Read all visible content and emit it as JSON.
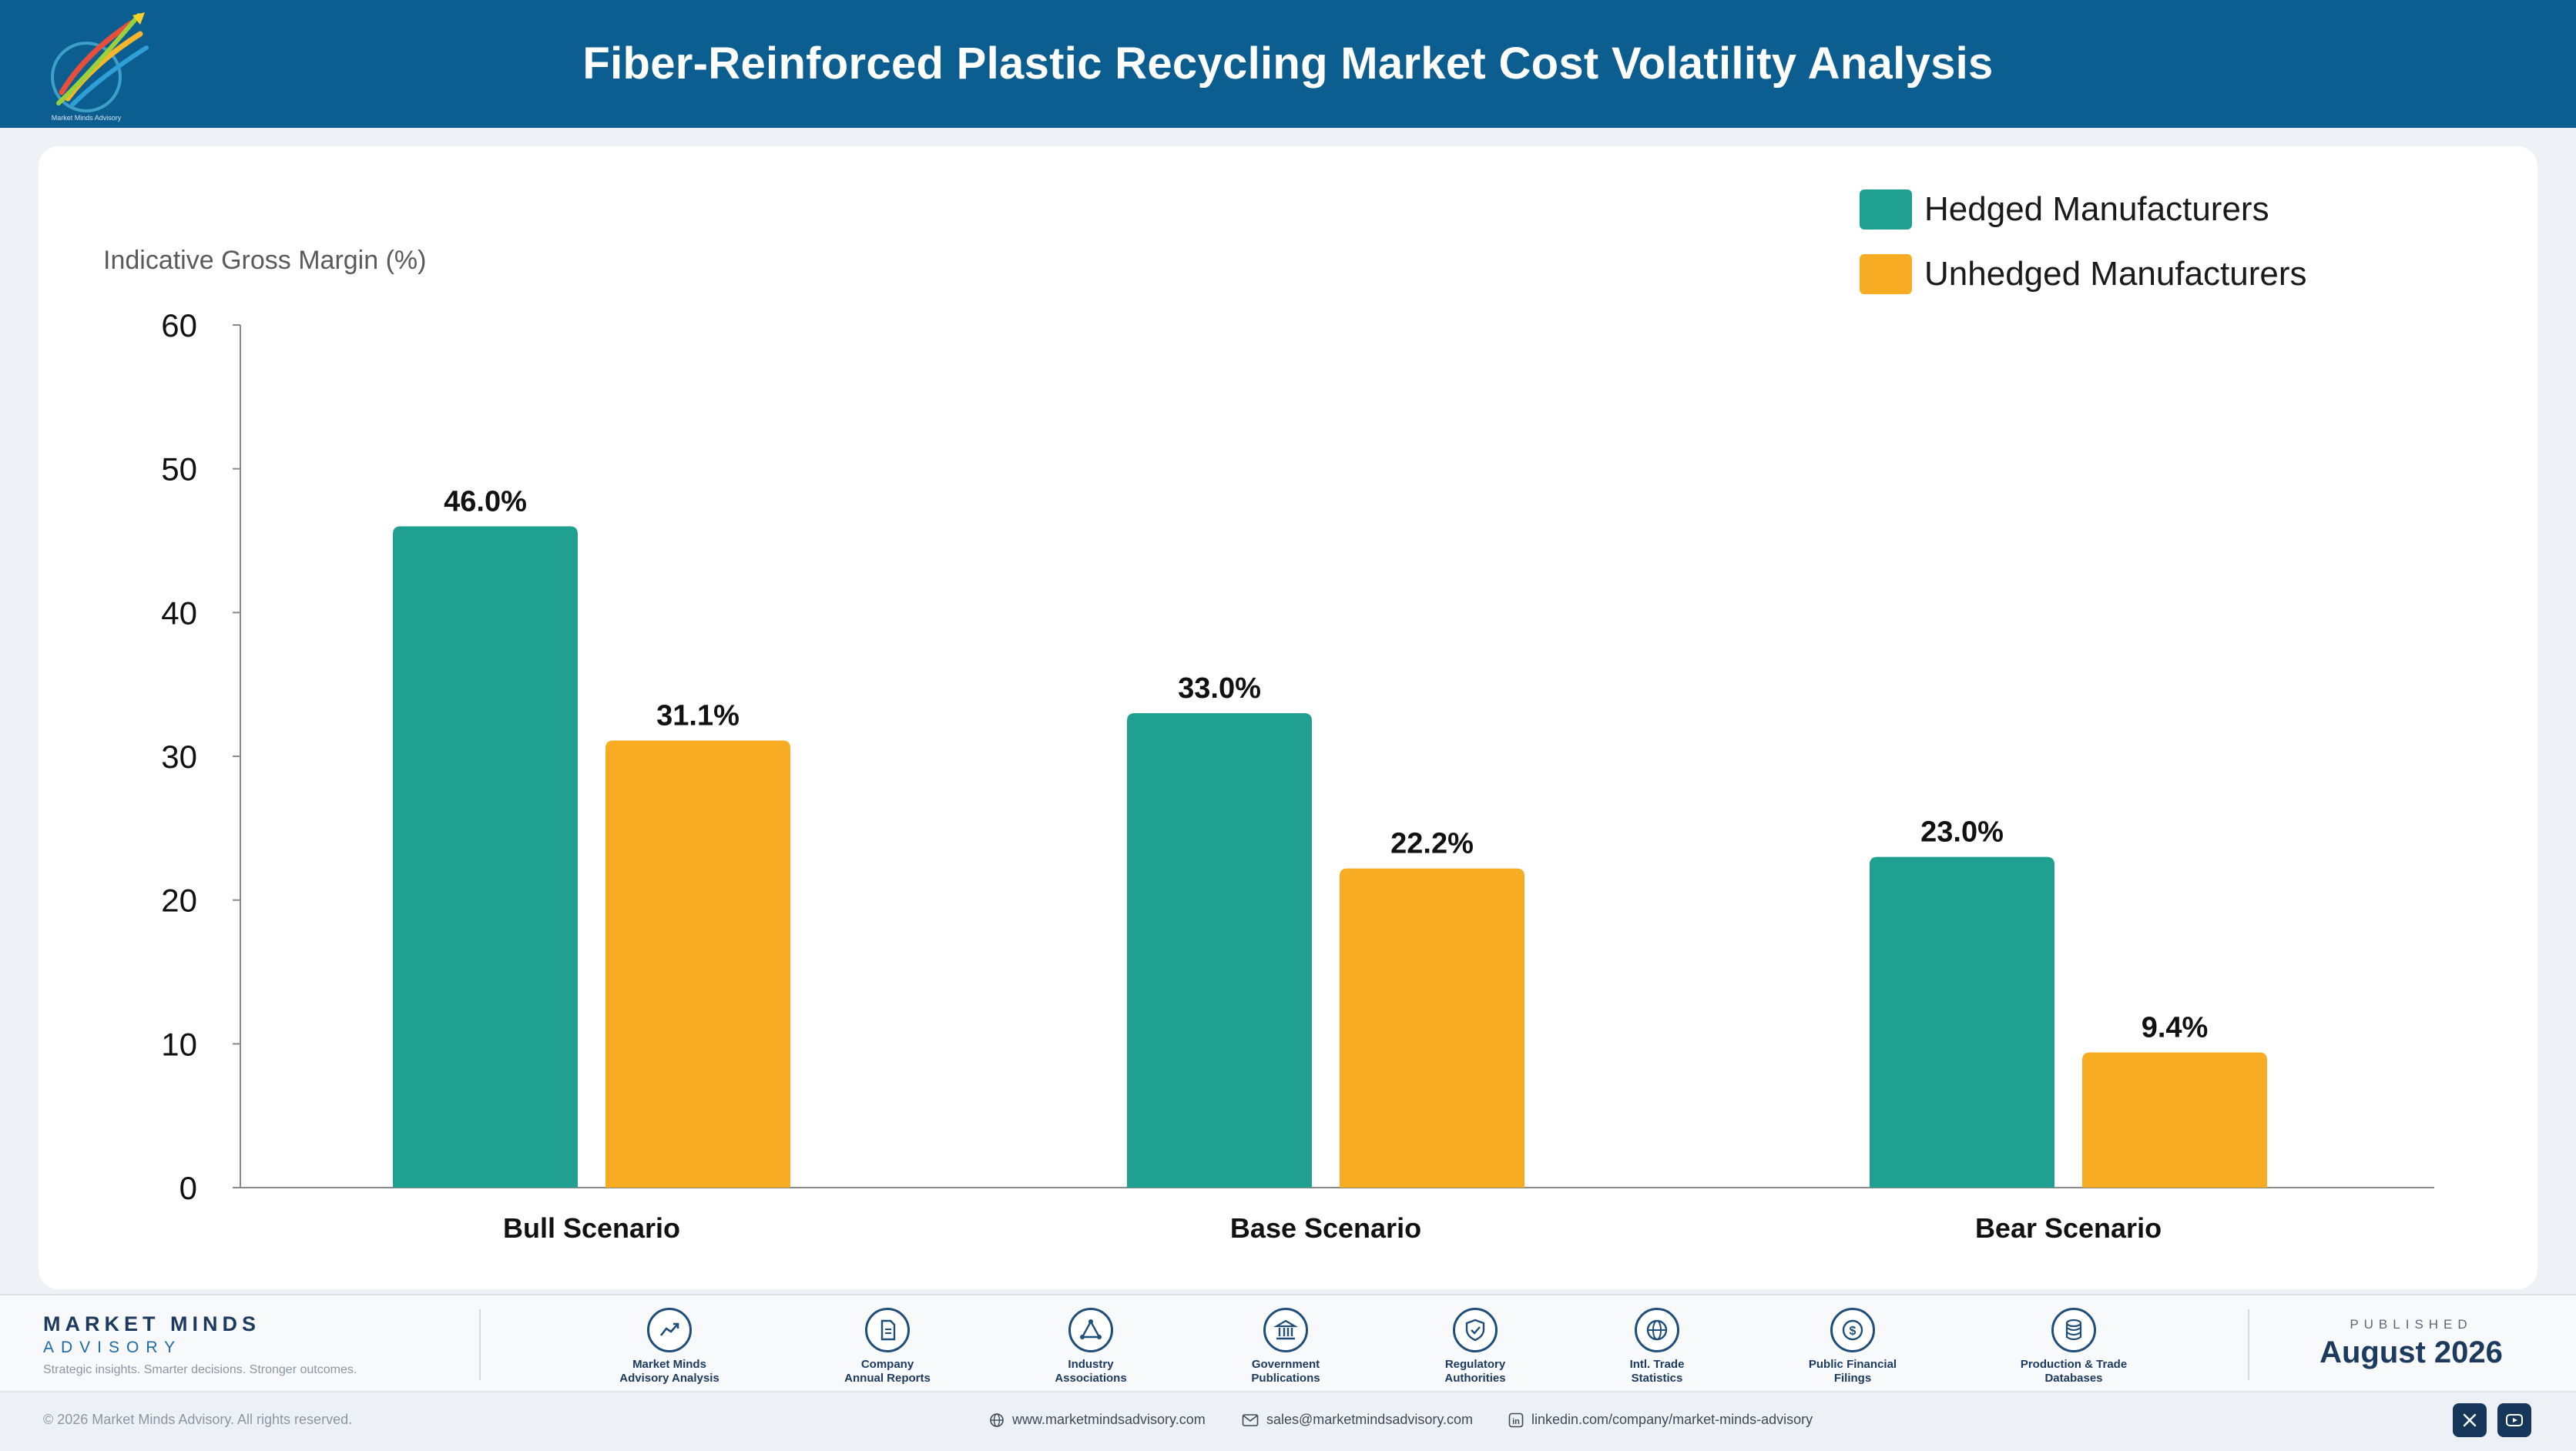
{
  "header": {
    "title": "Fiber-Reinforced Plastic Recycling Market Cost Volatility Analysis",
    "logo_text": "Market Minds Advisory"
  },
  "chart_data": {
    "type": "bar",
    "ylabel": "Indicative Gross Margin (%)",
    "ylim": [
      0,
      60
    ],
    "yticks": [
      0,
      10,
      20,
      30,
      40,
      50,
      60
    ],
    "categories": [
      "Bull Scenario",
      "Base Scenario",
      "Bear Scenario"
    ],
    "series": [
      {
        "name": "Hedged Manufacturers",
        "color": "#20a090",
        "values": [
          46.0,
          33.0,
          23.0
        ],
        "labels": [
          "46.0%",
          "33.0%",
          "23.0%"
        ]
      },
      {
        "name": "Unhedged Manufacturers",
        "color": "#f7ac23",
        "values": [
          31.1,
          22.2,
          9.4
        ],
        "labels": [
          "31.1%",
          "22.2%",
          "9.4%"
        ]
      }
    ],
    "legend_position": "top-right",
    "grid": false
  },
  "footer": {
    "brand_name": "MARKET MINDS",
    "brand_sub": "ADVISORY",
    "tagline": "Strategic insights. Smarter decisions. Stronger outcomes.",
    "sources": [
      {
        "label": "Market Minds\nAdvisory Analysis",
        "icon": "trend-line-icon"
      },
      {
        "label": "Company\nAnnual Reports",
        "icon": "document-icon"
      },
      {
        "label": "Industry\nAssociations",
        "icon": "network-icon"
      },
      {
        "label": "Government\nPublications",
        "icon": "bank-icon"
      },
      {
        "label": "Regulatory\nAuthorities",
        "icon": "shield-check-icon"
      },
      {
        "label": "Intl. Trade\nStatistics",
        "icon": "globe-icon"
      },
      {
        "label": "Public Financial\nFilings",
        "icon": "dollar-icon"
      },
      {
        "label": "Production & Trade\nDatabases",
        "icon": "database-icon"
      }
    ],
    "published_label": "PUBLISHED",
    "published_date": "August 2026",
    "copyright": "© 2026 Market Minds Advisory. All rights reserved.",
    "website": "www.marketmindsadvisory.com",
    "email": "sales@marketmindsadvisory.com",
    "linkedin": "linkedin.com/company/market-minds-advisory"
  }
}
